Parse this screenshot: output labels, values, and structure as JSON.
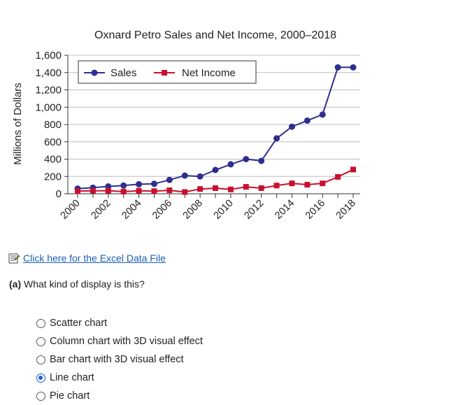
{
  "chart_data": {
    "type": "line",
    "title": "Oxnard Petro Sales and Net Income, 2000–2018",
    "xlabel": "",
    "ylabel": "Millions of Dollars",
    "x": [
      2000,
      2001,
      2002,
      2003,
      2004,
      2005,
      2006,
      2007,
      2008,
      2009,
      2010,
      2011,
      2012,
      2013,
      2014,
      2015,
      2016,
      2017,
      2018
    ],
    "x_tick_labels": [
      "2000",
      "2002",
      "2004",
      "2006",
      "2008",
      "2010",
      "2012",
      "2014",
      "2016",
      "2018"
    ],
    "y_tick_labels": [
      "1,600",
      "1,400",
      "1,200",
      "1,000",
      "800",
      "600",
      "400",
      "200",
      "0"
    ],
    "ylim": [
      0,
      1600
    ],
    "grid": true,
    "legend_position": "top-left",
    "series": [
      {
        "name": "Sales",
        "color": "#2e2e8f",
        "marker": "circle",
        "values": [
          60,
          70,
          85,
          95,
          110,
          115,
          160,
          210,
          200,
          275,
          340,
          400,
          380,
          640,
          775,
          845,
          915,
          1460,
          1460
        ]
      },
      {
        "name": "Net Income",
        "color": "#c8102e",
        "marker": "square",
        "values": [
          30,
          35,
          35,
          25,
          35,
          30,
          40,
          20,
          55,
          65,
          50,
          80,
          65,
          95,
          120,
          105,
          120,
          195,
          280
        ]
      }
    ]
  },
  "link": {
    "label": "Click here for the Excel Data File",
    "icon": "excel-file-icon"
  },
  "question": {
    "part": "(a)",
    "text": "What kind of display is this?"
  },
  "options": [
    {
      "label": "Scatter chart",
      "selected": false
    },
    {
      "label": "Column chart with 3D visual effect",
      "selected": false
    },
    {
      "label": "Bar chart with 3D visual effect",
      "selected": false
    },
    {
      "label": "Line chart",
      "selected": true
    },
    {
      "label": "Pie chart",
      "selected": false
    }
  ]
}
